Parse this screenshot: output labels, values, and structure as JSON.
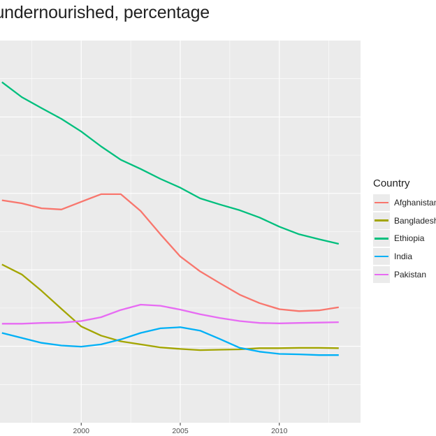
{
  "chart_data": {
    "type": "line",
    "title": "n undernourished, percentage",
    "xlabel": "",
    "ylabel": "",
    "x_ticks": [
      2000,
      2005,
      2010
    ],
    "xlim": [
      1995.9,
      2014.1
    ],
    "ylim": [
      0,
      100
    ],
    "grid": true,
    "legend": {
      "title": "Country",
      "position": "right"
    },
    "series": [
      {
        "name": "Afghanistan",
        "color": "#F8766D",
        "x": [
          1996,
          1997,
          1998,
          1999,
          2000,
          2001,
          2002,
          2003,
          2004,
          2005,
          2006,
          2007,
          2008,
          2009,
          2010,
          2011,
          2012,
          2013
        ],
        "y": [
          58.2,
          57.4,
          56.1,
          55.8,
          57.8,
          59.8,
          59.8,
          55.4,
          49.3,
          43.5,
          39.6,
          36.5,
          33.5,
          31.3,
          29.7,
          29.2,
          29.4,
          30.2
        ]
      },
      {
        "name": "Bangladesh",
        "color": "#A3A500",
        "x": [
          1996,
          1997,
          1998,
          1999,
          2000,
          2001,
          2002,
          2003,
          2004,
          2005,
          2006,
          2007,
          2008,
          2009,
          2010,
          2011,
          2012,
          2013
        ],
        "y": [
          41.4,
          38.8,
          34.5,
          29.8,
          25.2,
          22.8,
          21.3,
          20.5,
          19.7,
          19.3,
          19.0,
          19.1,
          19.2,
          19.5,
          19.5,
          19.6,
          19.6,
          19.5
        ]
      },
      {
        "name": "Ethiopia",
        "color": "#00BF7D",
        "x": [
          1996,
          1997,
          1998,
          1999,
          2000,
          2001,
          2002,
          2003,
          2004,
          2005,
          2006,
          2007,
          2008,
          2009,
          2010,
          2011,
          2012,
          2013
        ],
        "y": [
          89.1,
          85.2,
          82.3,
          79.5,
          76.2,
          72.3,
          68.8,
          66.4,
          63.8,
          61.5,
          58.7,
          57.1,
          55.6,
          53.7,
          51.3,
          49.3,
          48.0,
          46.8
        ]
      },
      {
        "name": "India",
        "color": "#00B0F6",
        "x": [
          1996,
          1997,
          1998,
          1999,
          2000,
          2001,
          2002,
          2003,
          2004,
          2005,
          2006,
          2007,
          2008,
          2009,
          2010,
          2011,
          2012,
          2013
        ],
        "y": [
          23.5,
          22.2,
          20.9,
          20.2,
          19.9,
          20.5,
          21.8,
          23.5,
          24.7,
          25.0,
          24.1,
          21.9,
          19.6,
          18.6,
          18.0,
          17.9,
          17.7,
          17.7
        ]
      },
      {
        "name": "Pakistan",
        "color": "#E76BF3",
        "x": [
          1996,
          1997,
          1998,
          1999,
          2000,
          2001,
          2002,
          2003,
          2004,
          2005,
          2006,
          2007,
          2008,
          2009,
          2010,
          2011,
          2012,
          2013
        ],
        "y": [
          25.9,
          25.9,
          26.1,
          26.2,
          26.6,
          27.6,
          29.5,
          30.9,
          30.6,
          29.6,
          28.4,
          27.4,
          26.6,
          26.1,
          26.0,
          26.1,
          26.2,
          26.3
        ]
      }
    ]
  }
}
